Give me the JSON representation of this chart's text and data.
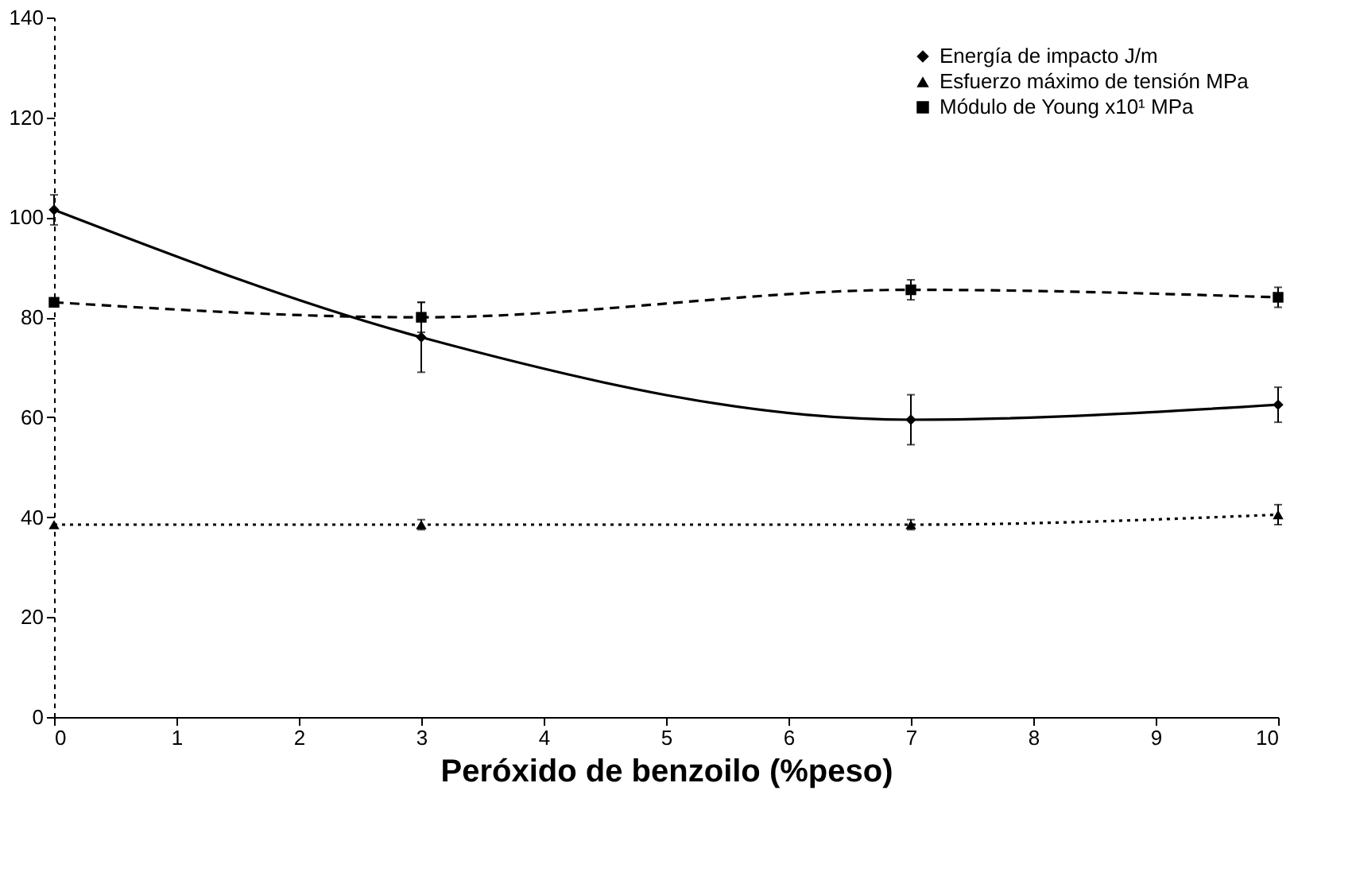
{
  "chart_data": {
    "type": "line",
    "xlabel": "Peróxido de benzoilo (%peso)",
    "x": [
      0,
      3,
      7,
      10
    ],
    "series": [
      {
        "name": "Energía de impacto J/m",
        "color": "#000000",
        "marker": "diamond",
        "line_style": "solid",
        "values": [
          101.5,
          76,
          59.5,
          62.5
        ],
        "errors": [
          3,
          7,
          5,
          3.5
        ]
      },
      {
        "name": "Esfuerzo máximo de tensión MPa",
        "color": "#000000",
        "marker": "triangle",
        "line_style": "dotted",
        "values": [
          38.5,
          38.5,
          38.5,
          40.5
        ],
        "errors": [
          null,
          1,
          1,
          2
        ]
      },
      {
        "name": "Módulo de Young x10¹ MPa",
        "color": "#000000",
        "marker": "square",
        "line_style": "dashed",
        "values": [
          83,
          80,
          85.5,
          84
        ],
        "errors": [
          null,
          3,
          2,
          2
        ]
      }
    ],
    "xlim": [
      0,
      10
    ],
    "xticks": [
      0,
      1,
      2,
      3,
      4,
      5,
      6,
      7,
      8,
      9,
      10
    ],
    "ylim": [
      0,
      140
    ],
    "yticks": [
      0,
      20,
      40,
      60,
      80,
      100,
      120,
      140
    ],
    "grid": false,
    "legend": "top right"
  }
}
